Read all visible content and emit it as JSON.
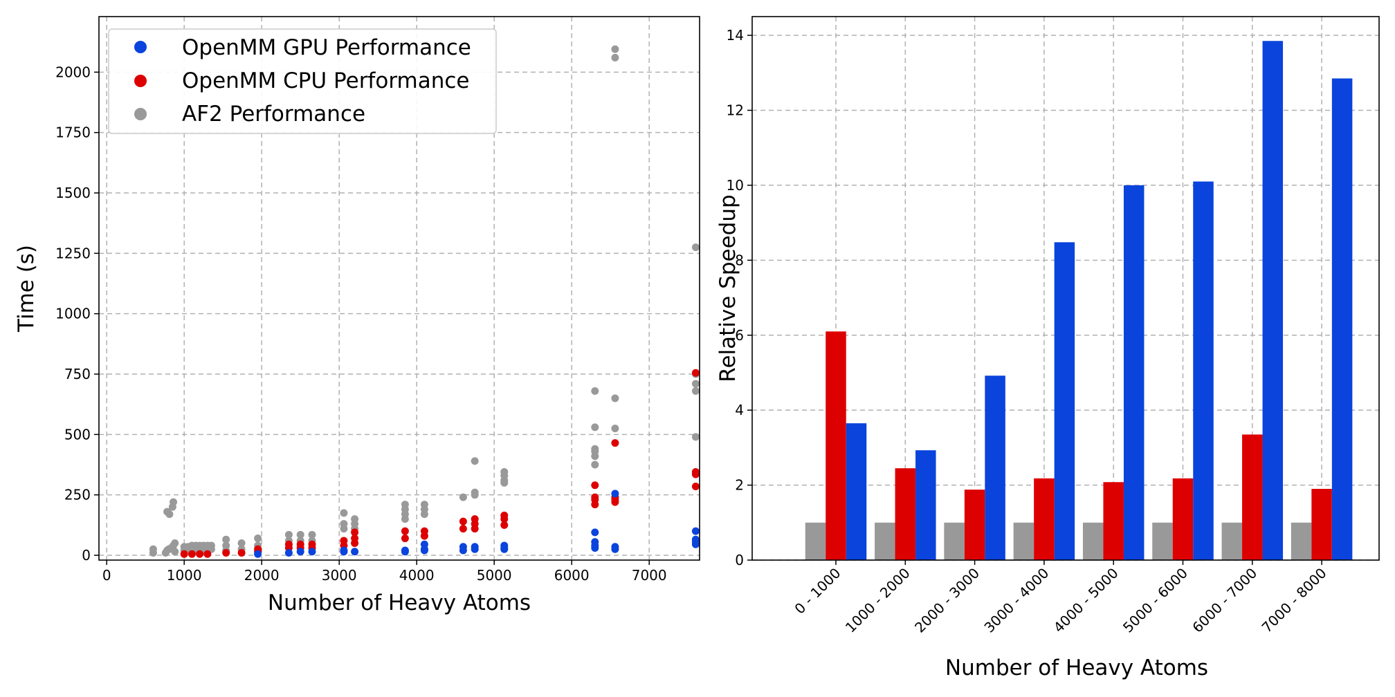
{
  "chart_data": [
    {
      "type": "scatter",
      "xlabel": "Number of Heavy Atoms",
      "ylabel": "Time (s)",
      "xlim": [
        -100,
        7650
      ],
      "ylim": [
        -20,
        2230
      ],
      "xticks": [
        0,
        1000,
        2000,
        3000,
        4000,
        5000,
        6000,
        7000
      ],
      "yticks": [
        0,
        250,
        500,
        750,
        1000,
        1250,
        1500,
        1750,
        2000
      ],
      "grid": true,
      "legend_position": "top-left",
      "series": [
        {
          "name": "AF2 Performance",
          "color": "#999999",
          "points": [
            [
              600,
              10
            ],
            [
              600,
              25
            ],
            [
              760,
              10
            ],
            [
              780,
              20
            ],
            [
              780,
              180
            ],
            [
              800,
              25
            ],
            [
              810,
              170
            ],
            [
              830,
              30
            ],
            [
              850,
              200
            ],
            [
              860,
              220
            ],
            [
              860,
              40
            ],
            [
              880,
              50
            ],
            [
              880,
              15
            ],
            [
              1000,
              20
            ],
            [
              1000,
              35
            ],
            [
              1050,
              25
            ],
            [
              1050,
              35
            ],
            [
              1100,
              40
            ],
            [
              1150,
              20
            ],
            [
              1150,
              40
            ],
            [
              1200,
              30
            ],
            [
              1200,
              40
            ],
            [
              1250,
              20
            ],
            [
              1250,
              40
            ],
            [
              1300,
              30
            ],
            [
              1300,
              40
            ],
            [
              1350,
              25
            ],
            [
              1350,
              40
            ],
            [
              1540,
              40
            ],
            [
              1540,
              65
            ],
            [
              1540,
              20
            ],
            [
              1740,
              25
            ],
            [
              1740,
              50
            ],
            [
              1950,
              40
            ],
            [
              1950,
              70
            ],
            [
              2350,
              60
            ],
            [
              2350,
              85
            ],
            [
              2500,
              60
            ],
            [
              2500,
              85
            ],
            [
              2650,
              60
            ],
            [
              2650,
              85
            ],
            [
              3060,
              110
            ],
            [
              3060,
              130
            ],
            [
              3060,
              175
            ],
            [
              3200,
              110
            ],
            [
              3200,
              130
            ],
            [
              3200,
              150
            ],
            [
              3850,
              150
            ],
            [
              3850,
              170
            ],
            [
              3850,
              190
            ],
            [
              3850,
              210
            ],
            [
              4100,
              170
            ],
            [
              4100,
              190
            ],
            [
              4100,
              210
            ],
            [
              4600,
              240
            ],
            [
              4750,
              250
            ],
            [
              4750,
              260
            ],
            [
              4750,
              390
            ],
            [
              5130,
              300
            ],
            [
              5130,
              310
            ],
            [
              5130,
              330
            ],
            [
              5130,
              345
            ],
            [
              6300,
              375
            ],
            [
              6300,
              410
            ],
            [
              6300,
              430
            ],
            [
              6300,
              440
            ],
            [
              6300,
              530
            ],
            [
              6300,
              680
            ],
            [
              6560,
              525
            ],
            [
              6560,
              650
            ],
            [
              6560,
              2060
            ],
            [
              6560,
              2095
            ],
            [
              7600,
              490
            ],
            [
              7600,
              680
            ],
            [
              7600,
              710
            ],
            [
              7600,
              750
            ],
            [
              7600,
              1275
            ]
          ]
        },
        {
          "name": "OpenMM CPU Performance",
          "color": "#dd0000",
          "points": [
            [
              1000,
              5
            ],
            [
              1100,
              5
            ],
            [
              1200,
              5
            ],
            [
              1300,
              5
            ],
            [
              1540,
              10
            ],
            [
              1740,
              10
            ],
            [
              1950,
              15
            ],
            [
              1950,
              25
            ],
            [
              2350,
              30
            ],
            [
              2350,
              45
            ],
            [
              2500,
              30
            ],
            [
              2500,
              45
            ],
            [
              2650,
              30
            ],
            [
              2650,
              45
            ],
            [
              3060,
              40
            ],
            [
              3060,
              60
            ],
            [
              3200,
              50
            ],
            [
              3200,
              70
            ],
            [
              3200,
              95
            ],
            [
              3850,
              70
            ],
            [
              3850,
              100
            ],
            [
              4100,
              80
            ],
            [
              4100,
              100
            ],
            [
              4600,
              110
            ],
            [
              4600,
              140
            ],
            [
              4750,
              110
            ],
            [
              4750,
              130
            ],
            [
              4750,
              150
            ],
            [
              5130,
              125
            ],
            [
              5130,
              150
            ],
            [
              5130,
              165
            ],
            [
              6300,
              210
            ],
            [
              6300,
              230
            ],
            [
              6300,
              240
            ],
            [
              6300,
              290
            ],
            [
              6560,
              220
            ],
            [
              6560,
              230
            ],
            [
              6560,
              240
            ],
            [
              6560,
              465
            ],
            [
              7600,
              285
            ],
            [
              7600,
              335
            ],
            [
              7600,
              345
            ],
            [
              7600,
              755
            ]
          ]
        },
        {
          "name": "OpenMM GPU Performance",
          "color": "#0a44dd",
          "points": [
            [
              1950,
              5
            ],
            [
              2350,
              10
            ],
            [
              2500,
              15
            ],
            [
              2650,
              15
            ],
            [
              3060,
              15
            ],
            [
              3060,
              20
            ],
            [
              3200,
              15
            ],
            [
              3850,
              15
            ],
            [
              3850,
              20
            ],
            [
              4100,
              20
            ],
            [
              4100,
              25
            ],
            [
              4100,
              45
            ],
            [
              4600,
              20
            ],
            [
              4600,
              35
            ],
            [
              4750,
              25
            ],
            [
              4750,
              35
            ],
            [
              5130,
              25
            ],
            [
              5130,
              30
            ],
            [
              5130,
              40
            ],
            [
              6300,
              30
            ],
            [
              6300,
              40
            ],
            [
              6300,
              55
            ],
            [
              6300,
              95
            ],
            [
              6560,
              25
            ],
            [
              6560,
              35
            ],
            [
              6560,
              255
            ],
            [
              7600,
              45
            ],
            [
              7600,
              55
            ],
            [
              7600,
              65
            ],
            [
              7600,
              100
            ]
          ]
        }
      ],
      "legend_order": [
        "OpenMM GPU Performance",
        "OpenMM CPU Performance",
        "AF2 Performance"
      ]
    },
    {
      "type": "bar",
      "xlabel": "Number of Heavy Atoms",
      "ylabel": "Relative Speedup",
      "ylim": [
        0,
        14.5
      ],
      "yticks": [
        0,
        2,
        4,
        6,
        8,
        10,
        12,
        14
      ],
      "grid": true,
      "categories": [
        "0 - 1000",
        "1000 - 2000",
        "2000 - 3000",
        "3000 - 4000",
        "4000 - 5000",
        "5000 - 6000",
        "6000 - 7000",
        "7000 - 8000"
      ],
      "series": [
        {
          "color": "#999999",
          "values": [
            1,
            1,
            1,
            1,
            1,
            1,
            1,
            1
          ]
        },
        {
          "color": "#dd0000",
          "values": [
            6.1,
            2.45,
            1.88,
            2.18,
            2.08,
            2.18,
            3.35,
            1.9
          ]
        },
        {
          "color": "#0a44dd",
          "values": [
            3.65,
            2.93,
            4.92,
            8.48,
            10.0,
            10.1,
            13.85,
            12.85
          ]
        }
      ]
    }
  ]
}
